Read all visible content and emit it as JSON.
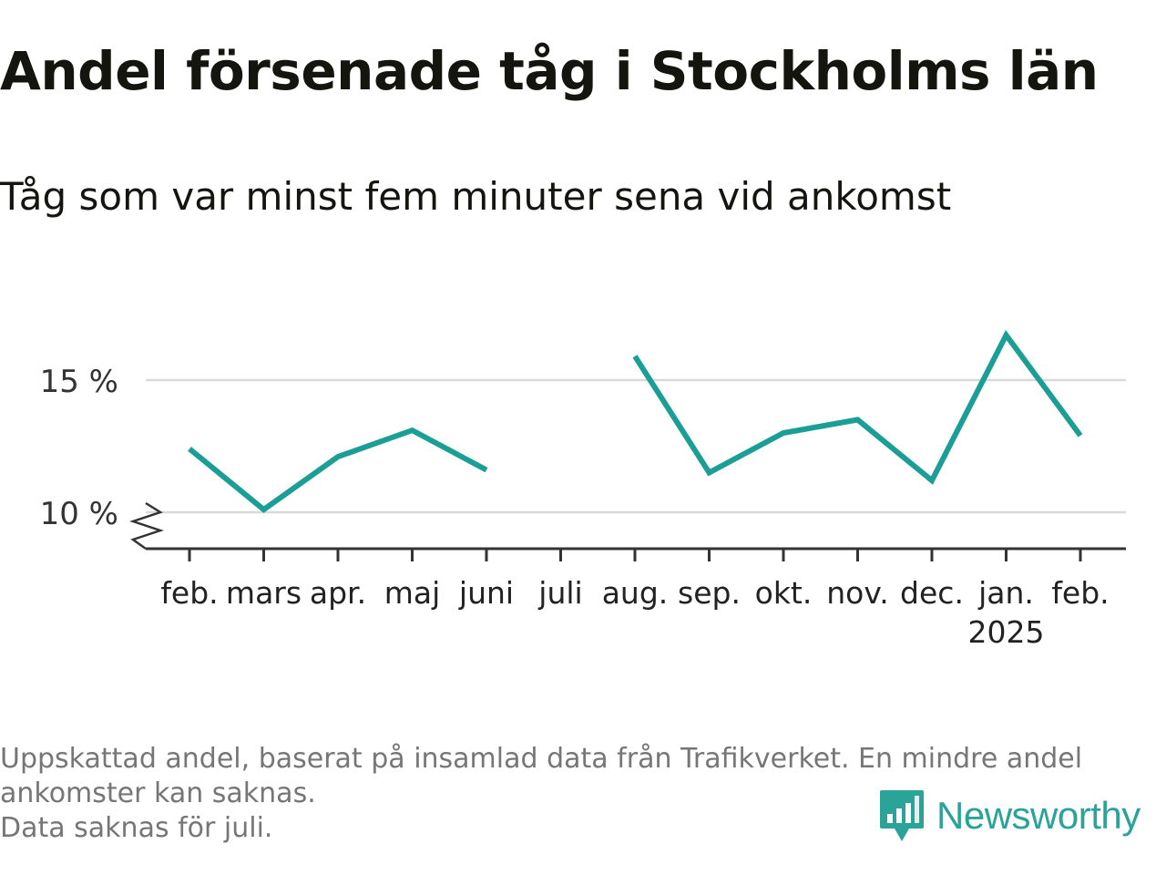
{
  "title": "Andel försenade tåg i Stockholms län",
  "subtitle": "Tåg som var minst fem minuter sena vid ankomst",
  "footnote": {
    "line1": "Uppskattad andel, baserat på insamlad data från Trafikverket. En mindre andel",
    "line2": "ankomster kan saknas.",
    "line3": "Data saknas för juli."
  },
  "logo": {
    "text": "Newsworthy",
    "icon": "newsworthy-chart-bubble-icon",
    "color": "#2aa399"
  },
  "colors": {
    "line": "#1a9e96",
    "grid": "#d9d9d9",
    "axis": "#333333"
  },
  "chart_data": {
    "type": "line",
    "title": "Andel försenade tåg i Stockholms län",
    "subtitle": "Tåg som var minst fem minuter sena vid ankomst",
    "categories": [
      "feb.",
      "mars",
      "apr.",
      "maj",
      "juni",
      "juli",
      "aug.",
      "sep.",
      "okt.",
      "nov.",
      "dec.",
      "jan.",
      "feb."
    ],
    "category_sublabels": [
      "",
      "",
      "",
      "",
      "",
      "",
      "",
      "",
      "",
      "",
      "",
      "2025",
      ""
    ],
    "series": [
      {
        "values": [
          12.4,
          10.1,
          12.1,
          13.1,
          11.6,
          null,
          15.9,
          11.5,
          13.0,
          13.5,
          11.2,
          16.7,
          12.9
        ]
      }
    ],
    "yticks": [
      10,
      15
    ],
    "ytick_labels": [
      "10 %",
      "15 %"
    ],
    "ylim": [
      8.6,
      18
    ],
    "y_axis_break": true,
    "grid": true
  }
}
